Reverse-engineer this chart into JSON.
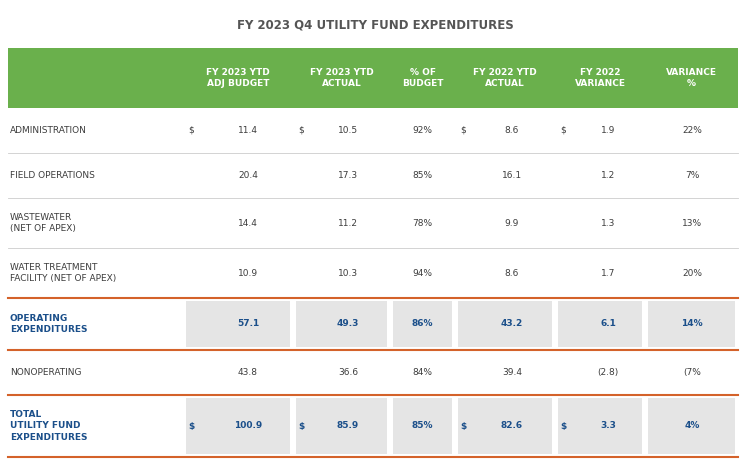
{
  "title": "FY 2023 Q4 UTILITY FUND EXPENDITURES",
  "header_bg": "#6ab04c",
  "header_text_color": "#ffffff",
  "rows": [
    {
      "label": "ADMINISTRATION",
      "label_bold": false,
      "label_color": "#3d3d3d",
      "dollar1": true,
      "col1": "11.4",
      "dollar2": true,
      "col2": "10.5",
      "col3": "92%",
      "dollar3": true,
      "col4": "8.6",
      "dollar4": true,
      "col5": "1.9",
      "col6": "22%",
      "highlight": false
    },
    {
      "label": "FIELD OPERATIONS",
      "label_bold": false,
      "label_color": "#3d3d3d",
      "dollar1": false,
      "col1": "20.4",
      "dollar2": false,
      "col2": "17.3",
      "col3": "85%",
      "dollar3": false,
      "col4": "16.1",
      "dollar4": false,
      "col5": "1.2",
      "col6": "7%",
      "highlight": false
    },
    {
      "label": "WASTEWATER\n(NET OF APEX)",
      "label_bold": false,
      "label_color": "#3d3d3d",
      "dollar1": false,
      "col1": "14.4",
      "dollar2": false,
      "col2": "11.2",
      "col3": "78%",
      "dollar3": false,
      "col4": "9.9",
      "dollar4": false,
      "col5": "1.3",
      "col6": "13%",
      "highlight": false
    },
    {
      "label": "WATER TREATMENT\nFACILITY (NET OF APEX)",
      "label_bold": false,
      "label_color": "#3d3d3d",
      "dollar1": false,
      "col1": "10.9",
      "dollar2": false,
      "col2": "10.3",
      "col3": "94%",
      "dollar3": false,
      "col4": "8.6",
      "dollar4": false,
      "col5": "1.7",
      "col6": "20%",
      "highlight": false
    },
    {
      "label": "OPERATING\nEXPENDITURES",
      "label_bold": true,
      "label_color": "#1b4f8a",
      "dollar1": false,
      "col1": "57.1",
      "dollar2": false,
      "col2": "49.3",
      "col3": "86%",
      "dollar3": false,
      "col4": "43.2",
      "dollar4": false,
      "col5": "6.1",
      "col6": "14%",
      "highlight": true
    },
    {
      "label": "NONOPERATING",
      "label_bold": false,
      "label_color": "#3d3d3d",
      "dollar1": false,
      "col1": "43.8",
      "dollar2": false,
      "col2": "36.6",
      "col3": "84%",
      "dollar3": false,
      "col4": "39.4",
      "dollar4": false,
      "col5": "(2.8)",
      "col6": "(7%",
      "highlight": false
    },
    {
      "label": "TOTAL\nUTILITY FUND\nEXPENDITURES",
      "label_bold": true,
      "label_color": "#1b4f8a",
      "dollar1": true,
      "col1": "100.9",
      "dollar2": true,
      "col2": "85.9",
      "col3": "85%",
      "dollar3": true,
      "col4": "82.6",
      "dollar4": true,
      "col5": "3.3",
      "col6": "4%",
      "highlight": true
    }
  ],
  "highlight_bg": "#e5e5e5",
  "highlight_text_color": "#1b4f8a",
  "normal_text_color": "#3d3d3d",
  "orange_line_color": "#d4622a",
  "bg_color": "#ffffff",
  "title_color": "#555555"
}
